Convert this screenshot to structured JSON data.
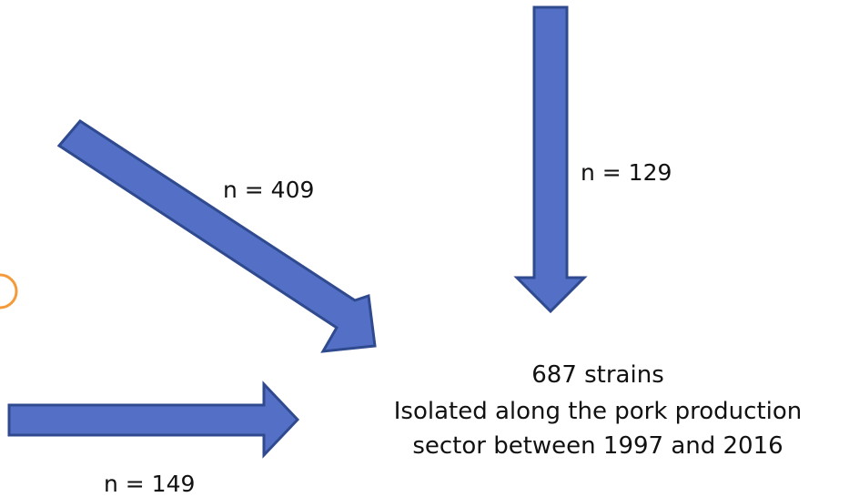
{
  "arrows": [
    {
      "label": "n = 409"
    },
    {
      "label": "n = 129"
    },
    {
      "label": "n = 149"
    }
  ],
  "target": {
    "lines": [
      "687 strains",
      "Isolated along the pork production",
      "sector between 1997 and 2016"
    ]
  }
}
